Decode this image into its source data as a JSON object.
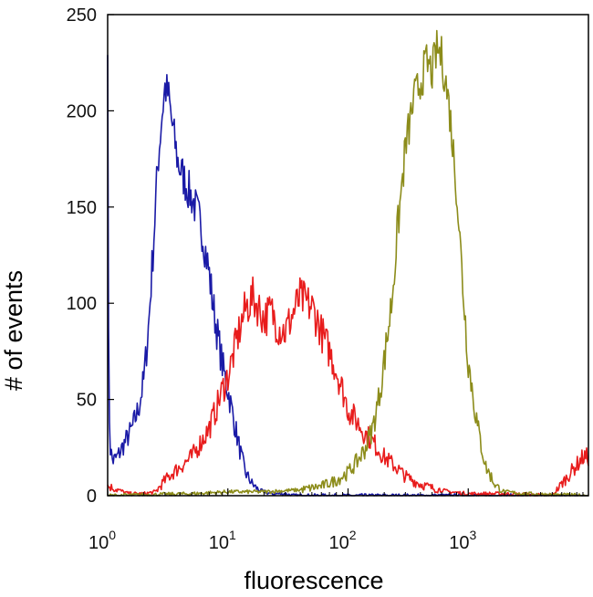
{
  "chart_data": {
    "type": "line",
    "title": "",
    "xlabel": "fluorescence",
    "ylabel": "# of events",
    "x_scale": "log",
    "xlim": [
      1,
      10000
    ],
    "ylim": [
      0,
      250
    ],
    "grid": false,
    "legend": "none",
    "y_ticks": [
      {
        "value": 0,
        "label": "0"
      },
      {
        "value": 50,
        "label": "50"
      },
      {
        "value": 100,
        "label": "100"
      },
      {
        "value": 150,
        "label": "150"
      },
      {
        "value": 200,
        "label": "200"
      },
      {
        "value": 250,
        "label": "250"
      }
    ],
    "x_ticks": [
      {
        "value": 1,
        "base": "10",
        "exp": "0"
      },
      {
        "value": 10,
        "base": "10",
        "exp": "1"
      },
      {
        "value": 100,
        "base": "10",
        "exp": "2"
      },
      {
        "value": 1000,
        "base": "10",
        "exp": "3"
      }
    ],
    "series": [
      {
        "color": "#1a1aa6",
        "x": [
          1,
          1.02,
          1.05,
          1.1,
          1.2,
          1.4,
          1.6,
          1.8,
          2.0,
          2.2,
          2.4,
          2.6,
          2.8,
          3.0,
          3.2,
          3.4,
          3.6,
          3.8,
          4.0,
          4.3,
          4.6,
          5.0,
          5.5,
          6.0,
          6.5,
          7.0,
          7.5,
          8.0,
          8.5,
          9.0,
          10,
          11,
          12,
          13,
          14,
          16,
          18,
          20,
          23,
          26,
          30,
          35,
          40,
          50,
          60,
          80,
          100,
          200,
          500,
          1000,
          9000
        ],
        "y": [
          240,
          60,
          25,
          18,
          20,
          28,
          35,
          45,
          60,
          90,
          130,
          170,
          195,
          212,
          208,
          195,
          185,
          175,
          170,
          165,
          160,
          155,
          148,
          140,
          128,
          115,
          100,
          88,
          78,
          68,
          55,
          42,
          30,
          20,
          12,
          6,
          3,
          2,
          1,
          1,
          1,
          0,
          0,
          0,
          0,
          0,
          0,
          0,
          0,
          0,
          0
        ]
      },
      {
        "color": "#e81c1c",
        "x": [
          1,
          1.5,
          2,
          2.5,
          3,
          3.5,
          4,
          5,
          6,
          7,
          8,
          9,
          10,
          11,
          12,
          13,
          14,
          15,
          16,
          18,
          20,
          23,
          26,
          30,
          35,
          40,
          45,
          50,
          55,
          60,
          70,
          80,
          90,
          100,
          120,
          140,
          160,
          180,
          200,
          250,
          300,
          400,
          500,
          700,
          1000,
          2000,
          5000,
          9000
        ],
        "y": [
          5,
          1,
          1,
          2,
          8,
          12,
          15,
          20,
          28,
          35,
          45,
          55,
          62,
          72,
          82,
          90,
          97,
          100,
          103,
          98,
          92,
          96,
          88,
          85,
          95,
          103,
          100,
          98,
          92,
          85,
          75,
          65,
          55,
          45,
          38,
          32,
          28,
          24,
          20,
          15,
          10,
          6,
          4,
          2,
          1,
          1,
          0,
          20
        ]
      },
      {
        "color": "#8c8c1a",
        "x": [
          1,
          5,
          10,
          20,
          40,
          60,
          80,
          100,
          120,
          140,
          160,
          180,
          200,
          230,
          260,
          300,
          350,
          400,
          450,
          500,
          550,
          600,
          650,
          700,
          800,
          900,
          1000,
          1200,
          1400,
          1700,
          2000,
          3000,
          9000
        ],
        "y": [
          0,
          1,
          2,
          2,
          3,
          5,
          8,
          12,
          18,
          25,
          35,
          50,
          70,
          100,
          140,
          180,
          205,
          215,
          225,
          220,
          232,
          228,
          215,
          200,
          160,
          110,
          70,
          35,
          15,
          5,
          2,
          1,
          0
        ]
      }
    ]
  }
}
